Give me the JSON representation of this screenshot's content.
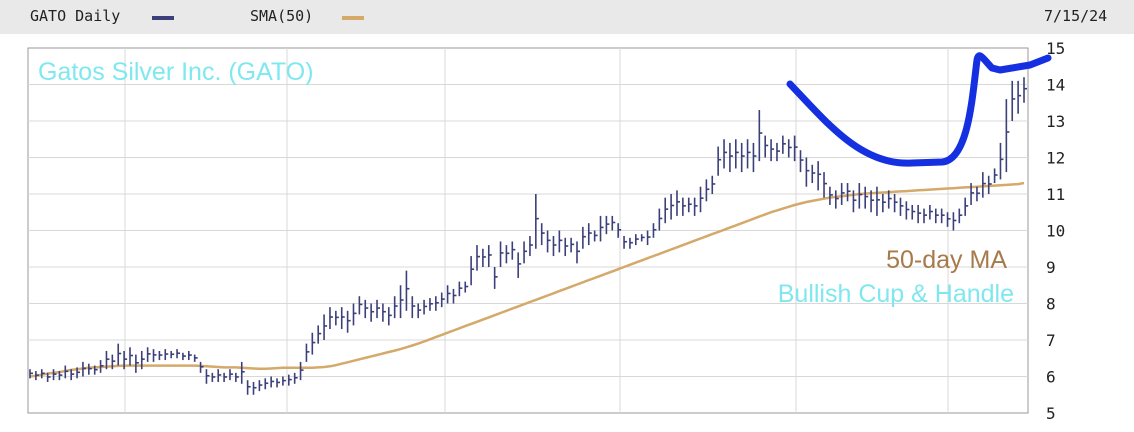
{
  "header": {
    "legend": [
      {
        "label": "GATO Daily",
        "color": "#3b3f7a"
      },
      {
        "label": "SMA(50)",
        "color": "#d4a96a"
      }
    ],
    "date": "7/15/24"
  },
  "chart_data": {
    "type": "ohlc",
    "ylim": [
      5,
      15
    ],
    "y_ticks": [
      5,
      6,
      7,
      8,
      9,
      10,
      11,
      12,
      13,
      14,
      15
    ],
    "grid": true,
    "series": [
      {
        "name": "GATO Daily",
        "color": "#3b3f7a",
        "bars": [
          [
            6.2,
            5.95
          ],
          [
            6.15,
            5.9
          ],
          [
            6.2,
            5.95
          ],
          [
            6.1,
            5.85
          ],
          [
            6.2,
            5.9
          ],
          [
            6.15,
            5.9
          ],
          [
            6.3,
            5.95
          ],
          [
            6.2,
            5.9
          ],
          [
            6.25,
            5.95
          ],
          [
            6.4,
            6.0
          ],
          [
            6.35,
            6.05
          ],
          [
            6.3,
            6.05
          ],
          [
            6.45,
            6.1
          ],
          [
            6.7,
            6.2
          ],
          [
            6.6,
            6.2
          ],
          [
            6.9,
            6.3
          ],
          [
            6.7,
            6.2
          ],
          [
            6.8,
            6.3
          ],
          [
            6.6,
            6.1
          ],
          [
            6.7,
            6.2
          ],
          [
            6.8,
            6.4
          ],
          [
            6.75,
            6.4
          ],
          [
            6.7,
            6.45
          ],
          [
            6.75,
            6.45
          ],
          [
            6.7,
            6.5
          ],
          [
            6.75,
            6.5
          ],
          [
            6.65,
            6.45
          ],
          [
            6.7,
            6.45
          ],
          [
            6.6,
            6.4
          ],
          [
            6.4,
            6.1
          ],
          [
            6.2,
            5.8
          ],
          [
            6.1,
            5.85
          ],
          [
            6.2,
            5.85
          ],
          [
            6.1,
            5.85
          ],
          [
            6.2,
            5.9
          ],
          [
            6.1,
            5.85
          ],
          [
            6.4,
            5.8
          ],
          [
            5.9,
            5.5
          ],
          [
            5.85,
            5.5
          ],
          [
            5.9,
            5.6
          ],
          [
            5.95,
            5.65
          ],
          [
            6.0,
            5.7
          ],
          [
            5.95,
            5.7
          ],
          [
            6.0,
            5.75
          ],
          [
            6.05,
            5.75
          ],
          [
            6.1,
            5.8
          ],
          [
            6.4,
            5.9
          ],
          [
            6.9,
            6.4
          ],
          [
            7.2,
            6.6
          ],
          [
            7.4,
            6.9
          ],
          [
            7.7,
            7.0
          ],
          [
            7.9,
            7.3
          ],
          [
            7.8,
            7.4
          ],
          [
            7.9,
            7.3
          ],
          [
            7.8,
            7.2
          ],
          [
            8.0,
            7.4
          ],
          [
            8.2,
            7.7
          ],
          [
            8.1,
            7.6
          ],
          [
            8.0,
            7.5
          ],
          [
            8.1,
            7.6
          ],
          [
            8.0,
            7.5
          ],
          [
            7.9,
            7.4
          ],
          [
            8.2,
            7.6
          ],
          [
            8.5,
            7.6
          ],
          [
            8.9,
            7.8
          ],
          [
            8.2,
            7.6
          ],
          [
            8.0,
            7.6
          ],
          [
            8.1,
            7.7
          ],
          [
            8.15,
            7.8
          ],
          [
            8.2,
            7.8
          ],
          [
            8.3,
            7.9
          ],
          [
            8.5,
            8.0
          ],
          [
            8.4,
            8.0
          ],
          [
            8.6,
            8.2
          ],
          [
            8.6,
            8.3
          ],
          [
            9.3,
            8.5
          ],
          [
            9.6,
            8.9
          ],
          [
            9.5,
            9.0
          ],
          [
            9.6,
            9.0
          ],
          [
            9.0,
            8.4
          ],
          [
            9.7,
            9.0
          ],
          [
            9.6,
            9.1
          ],
          [
            9.7,
            9.2
          ],
          [
            9.4,
            8.7
          ],
          [
            9.7,
            9.1
          ],
          [
            9.85,
            9.3
          ],
          [
            11.0,
            9.5
          ],
          [
            10.2,
            9.6
          ],
          [
            10.0,
            9.4
          ],
          [
            9.85,
            9.3
          ],
          [
            10.0,
            9.4
          ],
          [
            9.8,
            9.3
          ],
          [
            9.8,
            9.4
          ],
          [
            9.7,
            9.1
          ],
          [
            10.1,
            9.5
          ],
          [
            10.2,
            9.6
          ],
          [
            10.0,
            9.7
          ],
          [
            10.4,
            9.7
          ],
          [
            10.4,
            9.9
          ],
          [
            10.4,
            10.0
          ],
          [
            10.2,
            9.8
          ],
          [
            9.85,
            9.5
          ],
          [
            9.8,
            9.5
          ],
          [
            9.9,
            9.6
          ],
          [
            9.9,
            9.7
          ],
          [
            10.0,
            9.6
          ],
          [
            10.2,
            9.8
          ],
          [
            10.6,
            10.0
          ],
          [
            10.9,
            10.2
          ],
          [
            11.0,
            10.3
          ],
          [
            11.1,
            10.4
          ],
          [
            10.9,
            10.4
          ],
          [
            10.9,
            10.5
          ],
          [
            10.9,
            10.4
          ],
          [
            11.2,
            10.5
          ],
          [
            11.4,
            10.8
          ],
          [
            11.5,
            11.0
          ],
          [
            12.3,
            11.5
          ],
          [
            12.5,
            11.7
          ],
          [
            12.4,
            11.6
          ],
          [
            12.5,
            11.7
          ],
          [
            12.4,
            11.6
          ],
          [
            12.5,
            11.7
          ],
          [
            12.4,
            11.6
          ],
          [
            13.3,
            11.9
          ],
          [
            12.6,
            12.0
          ],
          [
            12.5,
            11.9
          ],
          [
            12.4,
            11.9
          ],
          [
            12.6,
            12.1
          ],
          [
            12.5,
            12.0
          ],
          [
            12.6,
            11.9
          ],
          [
            12.2,
            11.6
          ],
          [
            12.0,
            11.2
          ],
          [
            11.8,
            11.3
          ],
          [
            11.9,
            11.1
          ],
          [
            11.6,
            10.9
          ],
          [
            11.2,
            10.7
          ],
          [
            11.1,
            10.6
          ],
          [
            11.3,
            10.7
          ],
          [
            11.3,
            10.8
          ],
          [
            11.1,
            10.5
          ],
          [
            11.3,
            10.6
          ],
          [
            11.2,
            10.6
          ],
          [
            11.1,
            10.5
          ],
          [
            11.2,
            10.4
          ],
          [
            11.0,
            10.5
          ],
          [
            11.1,
            10.6
          ],
          [
            11.0,
            10.5
          ],
          [
            10.9,
            10.4
          ],
          [
            10.8,
            10.3
          ],
          [
            10.7,
            10.3
          ],
          [
            10.7,
            10.2
          ],
          [
            10.6,
            10.2
          ],
          [
            10.7,
            10.3
          ],
          [
            10.6,
            10.2
          ],
          [
            10.6,
            10.2
          ],
          [
            10.5,
            10.1
          ],
          [
            10.5,
            10.0
          ],
          [
            10.6,
            10.2
          ],
          [
            10.9,
            10.4
          ],
          [
            11.3,
            10.7
          ],
          [
            11.2,
            10.8
          ],
          [
            11.6,
            10.9
          ],
          [
            11.5,
            11.0
          ],
          [
            11.7,
            11.3
          ],
          [
            12.4,
            11.4
          ],
          [
            13.6,
            11.6
          ],
          [
            14.1,
            13.0
          ],
          [
            14.1,
            13.2
          ],
          [
            14.2,
            13.5
          ]
        ]
      },
      {
        "name": "SMA(50)",
        "color": "#d4a96a",
        "values": [
          6.0,
          6.02,
          6.05,
          6.08,
          6.1,
          6.12,
          6.15,
          6.18,
          6.2,
          6.22,
          6.24,
          6.25,
          6.26,
          6.27,
          6.28,
          6.29,
          6.3,
          6.3,
          6.3,
          6.3,
          6.3,
          6.3,
          6.3,
          6.3,
          6.3,
          6.3,
          6.3,
          6.3,
          6.3,
          6.29,
          6.28,
          6.27,
          6.26,
          6.25,
          6.25,
          6.25,
          6.24,
          6.23,
          6.22,
          6.21,
          6.21,
          6.22,
          6.23,
          6.24,
          6.24,
          6.24,
          6.24,
          6.24,
          6.24,
          6.25,
          6.26,
          6.28,
          6.31,
          6.35,
          6.39,
          6.43,
          6.47,
          6.51,
          6.55,
          6.59,
          6.63,
          6.67,
          6.71,
          6.75,
          6.8,
          6.85,
          6.9,
          6.96,
          7.02,
          7.08,
          7.14,
          7.2,
          7.26,
          7.32,
          7.38,
          7.44,
          7.5,
          7.56,
          7.62,
          7.68,
          7.74,
          7.8,
          7.86,
          7.92,
          7.98,
          8.04,
          8.1,
          8.16,
          8.22,
          8.28,
          8.34,
          8.4,
          8.46,
          8.52,
          8.58,
          8.64,
          8.7,
          8.76,
          8.82,
          8.88,
          8.94,
          9.0,
          9.06,
          9.12,
          9.18,
          9.24,
          9.3,
          9.36,
          9.42,
          9.48,
          9.54,
          9.6,
          9.66,
          9.72,
          9.78,
          9.84,
          9.9,
          9.96,
          10.02,
          10.08,
          10.14,
          10.2,
          10.26,
          10.32,
          10.38,
          10.44,
          10.5,
          10.55,
          10.6,
          10.65,
          10.7,
          10.74,
          10.78,
          10.81,
          10.84,
          10.87,
          10.9,
          10.92,
          10.94,
          10.96,
          10.98,
          11.0,
          11.01,
          11.02,
          11.03,
          11.04,
          11.05,
          11.06,
          11.07,
          11.08,
          11.09,
          11.1,
          11.11,
          11.12,
          11.13,
          11.14,
          11.15,
          11.16,
          11.17,
          11.18,
          11.19,
          11.2,
          11.21,
          11.22,
          11.23,
          11.24,
          11.25,
          11.26,
          11.27,
          11.3
        ]
      }
    ],
    "annotations": [
      {
        "text": "Gatos Silver Inc. (GATO)",
        "color": "#7fe8ee"
      },
      {
        "text": "50-day MA",
        "color": "#a67a4a"
      },
      {
        "text": "Bullish Cup & Handle",
        "color": "#7fe8ee"
      }
    ],
    "overlay_color": "#1530e0"
  }
}
